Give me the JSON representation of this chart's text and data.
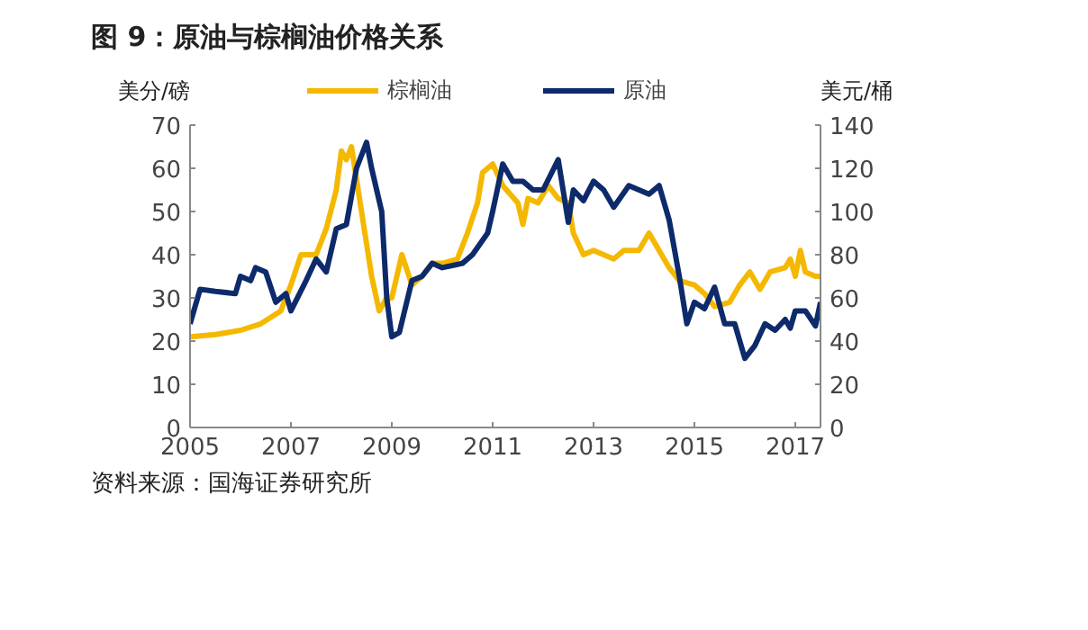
{
  "chart_data": {
    "type": "line",
    "title": "图 9：原油与棕榈油价格关系",
    "ylabel": "美分/磅",
    "y2label": "美元/桶",
    "xlim": [
      2005,
      2017.5
    ],
    "xticks": [
      2005,
      2007,
      2009,
      2011,
      2013,
      2015,
      2017
    ],
    "ylim": [
      0,
      70
    ],
    "yticks": [
      0,
      10,
      20,
      30,
      40,
      50,
      60,
      70
    ],
    "y2lim": [
      0,
      140
    ],
    "y2ticks": [
      0,
      20,
      40,
      60,
      80,
      100,
      120,
      140
    ],
    "legend": "top",
    "grid": false,
    "marker": "none",
    "line_style": "solid",
    "annotations": [
      "资料来源：国海证券研究所"
    ],
    "series": [
      {
        "name": "棕榈油",
        "color": "#f5b800",
        "x": [
          2005.0,
          2005.5,
          2006.0,
          2006.4,
          2006.8,
          2007.0,
          2007.2,
          2007.5,
          2007.7,
          2007.9,
          2008.0,
          2008.1,
          2008.2,
          2008.4,
          2008.6,
          2008.75,
          2008.9,
          2009.0,
          2009.2,
          2009.4,
          2009.6,
          2009.8,
          2010.0,
          2010.3,
          2010.5,
          2010.7,
          2010.8,
          2011.0,
          2011.2,
          2011.5,
          2011.6,
          2011.7,
          2011.9,
          2012.1,
          2012.3,
          2012.5,
          2012.6,
          2012.8,
          2013.0,
          2013.2,
          2013.4,
          2013.6,
          2013.9,
          2014.1,
          2014.3,
          2014.5,
          2014.7,
          2015.0,
          2015.2,
          2015.4,
          2015.7,
          2015.9,
          2016.1,
          2016.3,
          2016.5,
          2016.8,
          2016.9,
          2017.0,
          2017.1,
          2017.2,
          2017.4,
          2017.5
        ],
        "values": [
          21,
          21.5,
          22.5,
          24,
          27,
          33,
          40,
          40,
          46,
          55,
          64,
          62,
          65,
          50,
          35,
          27,
          30,
          30,
          40,
          33,
          35,
          38,
          38,
          39,
          45,
          52,
          59,
          61,
          56,
          52,
          47,
          53,
          52,
          56,
          53,
          52,
          45,
          40,
          41,
          40,
          39,
          41,
          41,
          45,
          41,
          37,
          34,
          33,
          31,
          28,
          29,
          33,
          36,
          32,
          36,
          37,
          39,
          35,
          41,
          36,
          35,
          35
        ]
      },
      {
        "name": "原油",
        "color": "#0d2a6b",
        "axis": "y2",
        "x": [
          2005.0,
          2005.2,
          2005.5,
          2005.9,
          2006.0,
          2006.2,
          2006.3,
          2006.5,
          2006.7,
          2006.9,
          2007.0,
          2007.3,
          2007.5,
          2007.7,
          2007.9,
          2008.1,
          2008.3,
          2008.5,
          2008.6,
          2008.8,
          2008.9,
          2009.0,
          2009.15,
          2009.4,
          2009.6,
          2009.8,
          2010.0,
          2010.4,
          2010.6,
          2010.9,
          2011.0,
          2011.2,
          2011.4,
          2011.6,
          2011.8,
          2012.0,
          2012.3,
          2012.5,
          2012.6,
          2012.8,
          2013.0,
          2013.2,
          2013.4,
          2013.7,
          2013.9,
          2014.1,
          2014.3,
          2014.5,
          2014.7,
          2014.85,
          2015.0,
          2015.2,
          2015.4,
          2015.6,
          2015.8,
          2016.0,
          2016.2,
          2016.4,
          2016.6,
          2016.8,
          2016.9,
          2017.0,
          2017.2,
          2017.4,
          2017.5
        ],
        "values": [
          48,
          64,
          63,
          62,
          70,
          68,
          74,
          72,
          58,
          62,
          54,
          68,
          78,
          72,
          92,
          94,
          120,
          132,
          120,
          100,
          60,
          42,
          44,
          68,
          70,
          76,
          74,
          76,
          80,
          90,
          100,
          122,
          114,
          114,
          110,
          110,
          124,
          95,
          110,
          105,
          114,
          110,
          102,
          112,
          110,
          108,
          112,
          96,
          70,
          48,
          58,
          55,
          65,
          48,
          48,
          32,
          38,
          48,
          45,
          50,
          46,
          54,
          54,
          47,
          58
        ]
      }
    ]
  }
}
